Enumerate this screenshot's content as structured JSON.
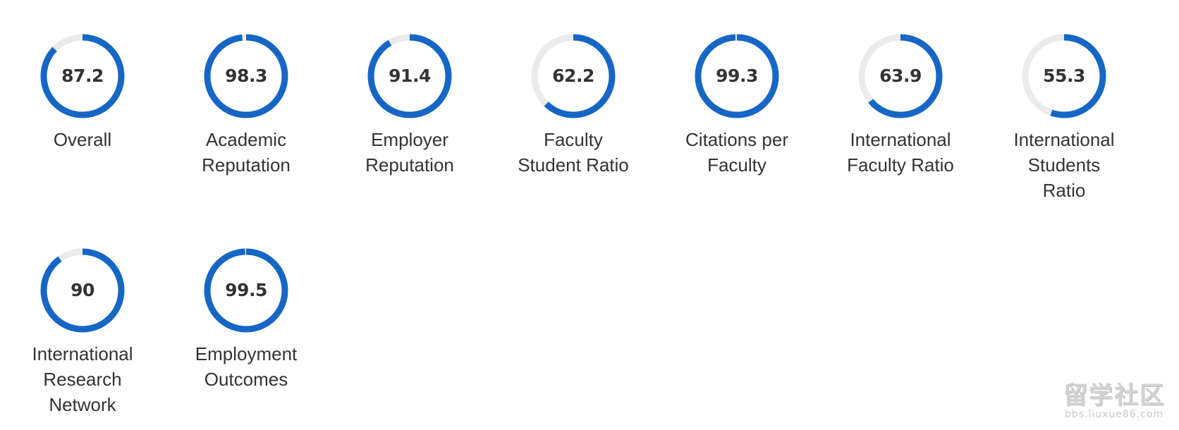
{
  "colors": {
    "ring_fill": "#1666c5",
    "ring_track": "#ebebeb",
    "text": "#333333"
  },
  "metrics": [
    {
      "value": "87.2",
      "score": 87.2,
      "label": "Overall"
    },
    {
      "value": "98.3",
      "score": 98.3,
      "label": "Academic\nReputation"
    },
    {
      "value": "91.4",
      "score": 91.4,
      "label": "Employer\nReputation"
    },
    {
      "value": "62.2",
      "score": 62.2,
      "label": "Faculty\nStudent Ratio"
    },
    {
      "value": "99.3",
      "score": 99.3,
      "label": "Citations per\nFaculty"
    },
    {
      "value": "63.9",
      "score": 63.9,
      "label": "International\nFaculty Ratio"
    },
    {
      "value": "55.3",
      "score": 55.3,
      "label": "International\nStudents\nRatio"
    },
    {
      "value": "90",
      "score": 90,
      "label": "International\nResearch\nNetwork"
    },
    {
      "value": "99.5",
      "score": 99.5,
      "label": "Employment\nOutcomes"
    }
  ],
  "watermark": {
    "text_cn": "留学社区",
    "url": "bbs.liuxue86.com"
  }
}
